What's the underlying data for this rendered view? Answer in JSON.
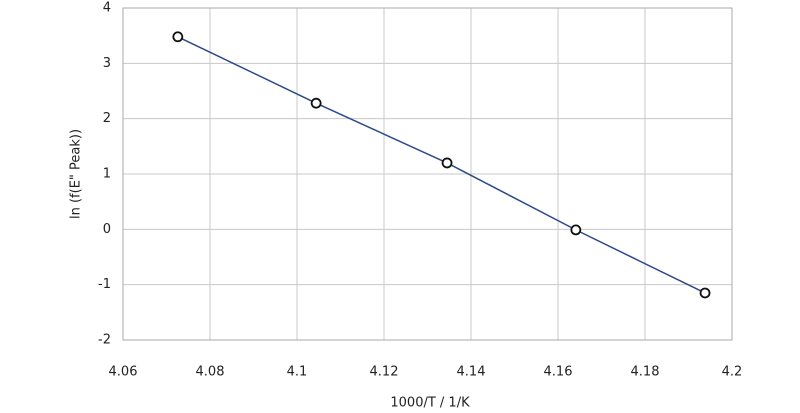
{
  "chart_data": {
    "type": "line",
    "x_label": "1000/T / 1/K",
    "y_label": "ln (f(E\" Peak))",
    "x": [
      4.0726,
      4.1044,
      4.1345,
      4.1641,
      4.1938
    ],
    "values": [
      3.48,
      2.28,
      1.2,
      -0.01,
      -1.15
    ],
    "color": "#2b4a8b",
    "xlim": [
      4.06,
      4.2
    ],
    "xticks": [
      4.06,
      4.08,
      4.1,
      4.12,
      4.14,
      4.16,
      4.18,
      4.2
    ],
    "ylim": [
      -2,
      4
    ],
    "yticks": [
      -2,
      -1,
      0,
      1,
      2,
      3,
      4
    ],
    "grid": true
  }
}
